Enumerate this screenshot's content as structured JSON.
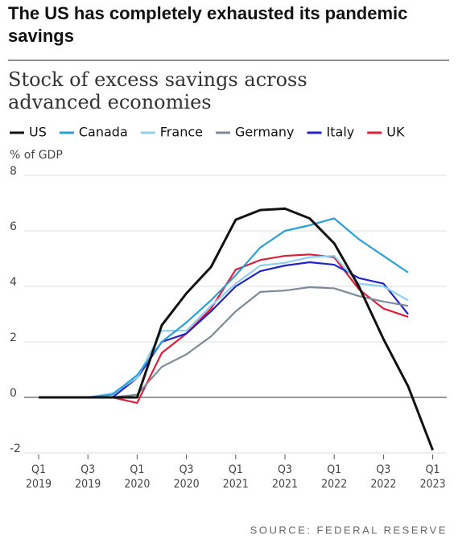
{
  "chart_data": {
    "type": "line",
    "title": "The US has completely exhausted its pandemic savings",
    "subtitle": "Stock of excess savings across advanced economies",
    "y_label": "% of GDP",
    "source": "SOURCE: FEDERAL RESERVE",
    "categories": [
      "Q1 2019",
      null,
      "Q3 2019",
      null,
      "Q1 2020",
      null,
      "Q3 2020",
      null,
      "Q1 2021",
      null,
      "Q3 2021",
      null,
      "Q1 2022",
      null,
      "Q3 2022",
      null,
      "Q1 2023"
    ],
    "ylim": [
      -2,
      8
    ],
    "yticks": [
      -2,
      0,
      2,
      4,
      6,
      8
    ],
    "grid": true,
    "series": [
      {
        "name": "US",
        "color": "#111111",
        "values": [
          0,
          0,
          0,
          0,
          0,
          2.6,
          3.75,
          4.7,
          6.4,
          6.75,
          6.8,
          6.45,
          5.55,
          4.0,
          2.1,
          0.4,
          -1.9
        ]
      },
      {
        "name": "Canada",
        "color": "#2a9fd8",
        "values": [
          0,
          0,
          0,
          0.1,
          0.8,
          2.0,
          2.7,
          3.5,
          4.4,
          5.4,
          6.0,
          6.2,
          6.45,
          5.7,
          5.1,
          4.5,
          null
        ]
      },
      {
        "name": "France",
        "color": "#8fcff3",
        "values": [
          0,
          0,
          0,
          0.15,
          0.7,
          2.4,
          2.4,
          3.3,
          4.1,
          4.75,
          4.85,
          5.05,
          5.1,
          4.1,
          4.0,
          3.5,
          null
        ]
      },
      {
        "name": "Germany",
        "color": "#7d8a99",
        "values": [
          0,
          0,
          0,
          0,
          0.1,
          1.1,
          1.55,
          2.2,
          3.1,
          3.8,
          3.85,
          3.97,
          3.93,
          3.65,
          3.45,
          3.3,
          null
        ]
      },
      {
        "name": "Italy",
        "color": "#2323cc",
        "values": [
          0,
          0,
          0,
          0,
          0.7,
          2.0,
          2.3,
          3.1,
          4.0,
          4.55,
          4.75,
          4.87,
          4.78,
          4.3,
          4.1,
          3.0,
          null
        ]
      },
      {
        "name": "UK",
        "color": "#d9213a",
        "values": [
          0,
          0,
          0,
          0,
          -0.2,
          1.6,
          2.3,
          3.2,
          4.6,
          4.95,
          5.1,
          5.15,
          5.05,
          3.9,
          3.2,
          2.9,
          null
        ]
      }
    ]
  }
}
